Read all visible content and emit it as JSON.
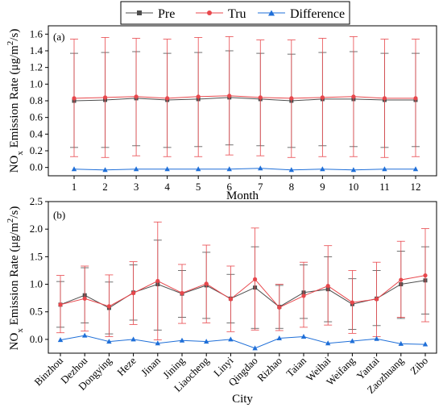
{
  "legend": {
    "items": [
      {
        "label": "Pre",
        "color": "#4d4d4d",
        "marker": "square"
      },
      {
        "label": "Tru",
        "color": "#e8474c",
        "marker": "circle"
      },
      {
        "label": "Difference",
        "color": "#1f6fd8",
        "marker": "triangle"
      }
    ]
  },
  "chart_data": [
    {
      "type": "line",
      "panel_label": "(a)",
      "xlabel": "Month",
      "ylabel_main": "NO",
      "ylabel_sub": "x",
      "ylabel_rest": " Emission Rate (μg/m",
      "ylabel_sup": "2",
      "ylabel_end": "/s)",
      "categories": [
        "1",
        "2",
        "3",
        "4",
        "5",
        "6",
        "7",
        "8",
        "9",
        "10",
        "11",
        "12"
      ],
      "ylim": [
        -0.1,
        1.7
      ],
      "yticks": [
        "0.0",
        "0.2",
        "0.4",
        "0.6",
        "0.8",
        "1.0",
        "1.2",
        "1.4",
        "1.6"
      ],
      "grid": false,
      "series": [
        {
          "name": "Pre",
          "color": "#4d4d4d",
          "values": [
            0.8,
            0.81,
            0.83,
            0.81,
            0.82,
            0.84,
            0.82,
            0.8,
            0.82,
            0.82,
            0.81,
            0.81
          ],
          "err_low": [
            0.24,
            0.24,
            0.26,
            0.24,
            0.25,
            0.27,
            0.26,
            0.24,
            0.26,
            0.25,
            0.24,
            0.25
          ],
          "err_high": [
            1.37,
            1.38,
            1.39,
            1.37,
            1.38,
            1.4,
            1.37,
            1.36,
            1.38,
            1.39,
            1.37,
            1.37
          ]
        },
        {
          "name": "Tru",
          "color": "#e8474c",
          "values": [
            0.83,
            0.84,
            0.85,
            0.83,
            0.85,
            0.86,
            0.84,
            0.83,
            0.84,
            0.85,
            0.83,
            0.83
          ],
          "err_low": [
            0.13,
            0.12,
            0.14,
            0.13,
            0.13,
            0.15,
            0.14,
            0.12,
            0.13,
            0.13,
            0.12,
            0.13
          ],
          "err_high": [
            1.54,
            1.56,
            1.55,
            1.54,
            1.56,
            1.57,
            1.53,
            1.53,
            1.55,
            1.57,
            1.54,
            1.54
          ]
        },
        {
          "name": "Difference",
          "color": "#1f6fd8",
          "values": [
            -0.02,
            -0.03,
            -0.02,
            -0.02,
            -0.02,
            -0.02,
            -0.01,
            -0.03,
            -0.02,
            -0.03,
            -0.02,
            -0.02
          ]
        }
      ]
    },
    {
      "type": "line",
      "panel_label": "(b)",
      "xlabel": "City",
      "ylabel_main": "NO",
      "ylabel_sub": "x",
      "ylabel_rest": " Emission Rate (μg/m",
      "ylabel_sup": "2",
      "ylabel_end": "/s)",
      "categories": [
        "Binzhou",
        "Dezhou",
        "Dongying",
        "Heze",
        "Jinan",
        "Jining",
        "Liaocheng",
        "Linyi",
        "Qingdao",
        "Rizhao",
        "Taian",
        "Weihai",
        "Weifang",
        "Yantai",
        "Zaozhuang",
        "Zibo"
      ],
      "ylim": [
        -0.25,
        2.5
      ],
      "yticks": [
        "0.0",
        "0.5",
        "1.0",
        "1.5",
        "2.0",
        "2.5"
      ],
      "grid": false,
      "series": [
        {
          "name": "Pre",
          "color": "#4d4d4d",
          "values": [
            0.63,
            0.8,
            0.57,
            0.85,
            1.0,
            0.83,
            0.98,
            0.74,
            0.94,
            0.59,
            0.85,
            0.91,
            0.64,
            0.74,
            1.0,
            1.07
          ],
          "err_low": [
            0.22,
            0.3,
            0.1,
            0.35,
            0.17,
            0.4,
            0.38,
            0.3,
            0.2,
            0.2,
            0.38,
            0.32,
            0.18,
            0.25,
            0.38,
            0.46
          ],
          "err_high": [
            1.05,
            1.3,
            1.04,
            1.35,
            1.8,
            1.25,
            1.58,
            1.18,
            1.68,
            0.98,
            1.35,
            1.5,
            1.1,
            1.25,
            1.6,
            1.68
          ]
        },
        {
          "name": "Tru",
          "color": "#e8474c",
          "values": [
            0.63,
            0.74,
            0.6,
            0.84,
            1.06,
            0.84,
            1.01,
            0.73,
            1.09,
            0.58,
            0.79,
            0.97,
            0.67,
            0.73,
            1.08,
            1.16
          ],
          "err_low": [
            0.12,
            0.15,
            0.05,
            0.27,
            -0.01,
            0.29,
            0.3,
            0.14,
            0.17,
            0.16,
            0.22,
            0.26,
            0.11,
            0.05,
            0.4,
            0.32
          ],
          "err_high": [
            1.16,
            1.33,
            1.17,
            1.41,
            2.13,
            1.36,
            1.71,
            1.33,
            2.02,
            1.0,
            1.4,
            1.7,
            1.25,
            1.4,
            1.78,
            2.01
          ]
        },
        {
          "name": "Difference",
          "color": "#1f6fd8",
          "values": [
            -0.01,
            0.07,
            -0.04,
            0.0,
            -0.07,
            -0.02,
            -0.04,
            0.0,
            -0.16,
            0.02,
            0.05,
            -0.07,
            -0.03,
            0.01,
            -0.08,
            -0.09
          ]
        }
      ]
    }
  ]
}
